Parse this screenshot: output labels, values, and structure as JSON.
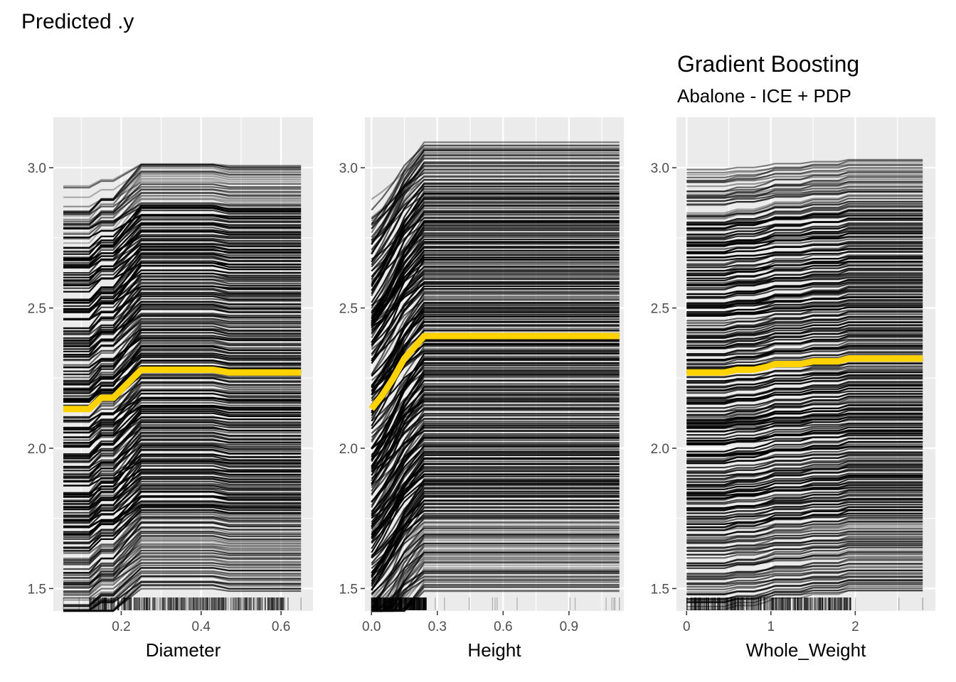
{
  "figure": {
    "ylabel": "Predicted .y",
    "title": "Gradient Boosting",
    "subtitle": "Abalone - ICE + PDP",
    "colors": {
      "panel_bg": "#ebebeb",
      "grid": "#ffffff",
      "ice_line": "#000000",
      "pdp_line": "#ffd200",
      "tick_text": "#4d4d4d"
    }
  },
  "chart_data": [
    {
      "type": "line",
      "xlabel": "Diameter",
      "xlim": [
        0.03,
        0.68
      ],
      "ylim": [
        1.42,
        3.18
      ],
      "x_ticks": [
        0.2,
        0.4,
        0.6
      ],
      "x_tick_labels": [
        "0.2",
        "0.4",
        "0.6"
      ],
      "y_ticks": [
        1.5,
        2.0,
        2.5,
        3.0
      ],
      "y_tick_labels": [
        "1.5",
        "2.0",
        "2.5",
        "3.0"
      ],
      "x": [
        0.055,
        0.12,
        0.15,
        0.18,
        0.25,
        0.43,
        0.47,
        0.65
      ],
      "pdp": [
        2.14,
        2.14,
        2.18,
        2.18,
        2.28,
        2.28,
        2.27,
        2.27
      ],
      "ice_range": [
        1.49,
        3.01
      ],
      "ice_count": 260,
      "rug_range": [
        0.055,
        0.65
      ],
      "rug_dense": [
        0.12,
        0.62
      ]
    },
    {
      "type": "line",
      "xlabel": "Height",
      "xlim": [
        -0.03,
        1.15
      ],
      "ylim": [
        1.42,
        3.18
      ],
      "x_ticks": [
        0.0,
        0.3,
        0.6,
        0.9
      ],
      "x_tick_labels": [
        "0.0",
        "0.3",
        "0.6",
        "0.9"
      ],
      "y_ticks": [
        1.5,
        2.0,
        2.5,
        3.0
      ],
      "y_tick_labels": [
        "1.5",
        "2.0",
        "2.5",
        "3.0"
      ],
      "x": [
        0.0,
        0.05,
        0.1,
        0.15,
        0.24,
        1.13
      ],
      "pdp": [
        2.14,
        2.19,
        2.25,
        2.32,
        2.4,
        2.4
      ],
      "ice_range": [
        1.49,
        3.09
      ],
      "ice_count": 260,
      "rug_range": [
        0.0,
        1.13
      ],
      "rug_dense": [
        0.0,
        0.25
      ]
    },
    {
      "type": "line",
      "xlabel": "Whole_Weight",
      "xlim": [
        -0.12,
        2.95
      ],
      "ylim": [
        1.42,
        3.18
      ],
      "x_ticks": [
        0,
        1,
        2
      ],
      "x_tick_labels": [
        "0",
        "1",
        "2"
      ],
      "y_ticks": [
        1.5,
        2.0,
        2.5,
        3.0
      ],
      "y_tick_labels": [
        "1.5",
        "2.0",
        "2.5",
        "3.0"
      ],
      "x": [
        0.0,
        0.45,
        0.6,
        0.8,
        0.95,
        1.05,
        1.2,
        1.35,
        1.5,
        1.8,
        1.92,
        2.8
      ],
      "pdp": [
        2.27,
        2.27,
        2.28,
        2.28,
        2.29,
        2.3,
        2.3,
        2.3,
        2.31,
        2.31,
        2.32,
        2.32
      ],
      "ice_range": [
        1.49,
        3.03
      ],
      "ice_count": 260,
      "rug_range": [
        0.0,
        2.8
      ],
      "rug_dense": [
        0.0,
        1.95
      ]
    }
  ]
}
